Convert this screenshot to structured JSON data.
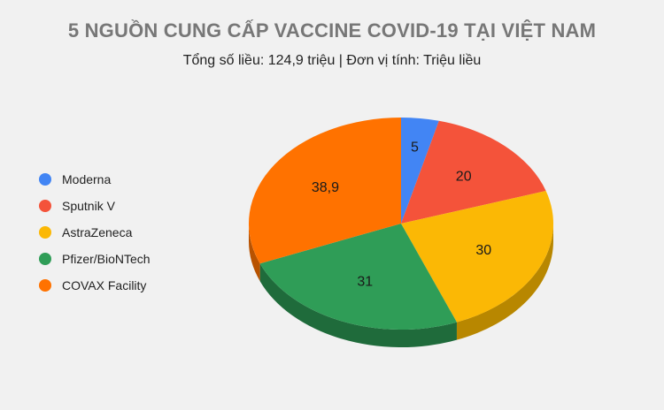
{
  "chart_data": {
    "type": "pie",
    "title": "5 NGUỒN CUNG CẤP VACCINE COVID-19 TẠI VIỆT NAM",
    "subtitle": "Tổng số liều: 124,9 triệu | Đơn vị tính: Triệu liều",
    "legend_position": "left",
    "style": "3d",
    "slices": [
      {
        "name": "Moderna",
        "value": 5,
        "label": "5",
        "color": "#4285F4",
        "side_color": "#2f5fb0"
      },
      {
        "name": "Sputnik V",
        "value": 20,
        "label": "20",
        "color": "#F4533A",
        "side_color": "#b03a28"
      },
      {
        "name": "AstraZeneca",
        "value": 30,
        "label": "30",
        "color": "#FBB805",
        "side_color": "#b88700"
      },
      {
        "name": "Pfizer/BioNTech",
        "value": 31,
        "label": "31",
        "color": "#2F9D57",
        "side_color": "#1f6b3b"
      },
      {
        "name": "COVAX Facility",
        "value": 38.9,
        "label": "38,9",
        "color": "#FF7200",
        "side_color": "#b85200"
      }
    ]
  }
}
